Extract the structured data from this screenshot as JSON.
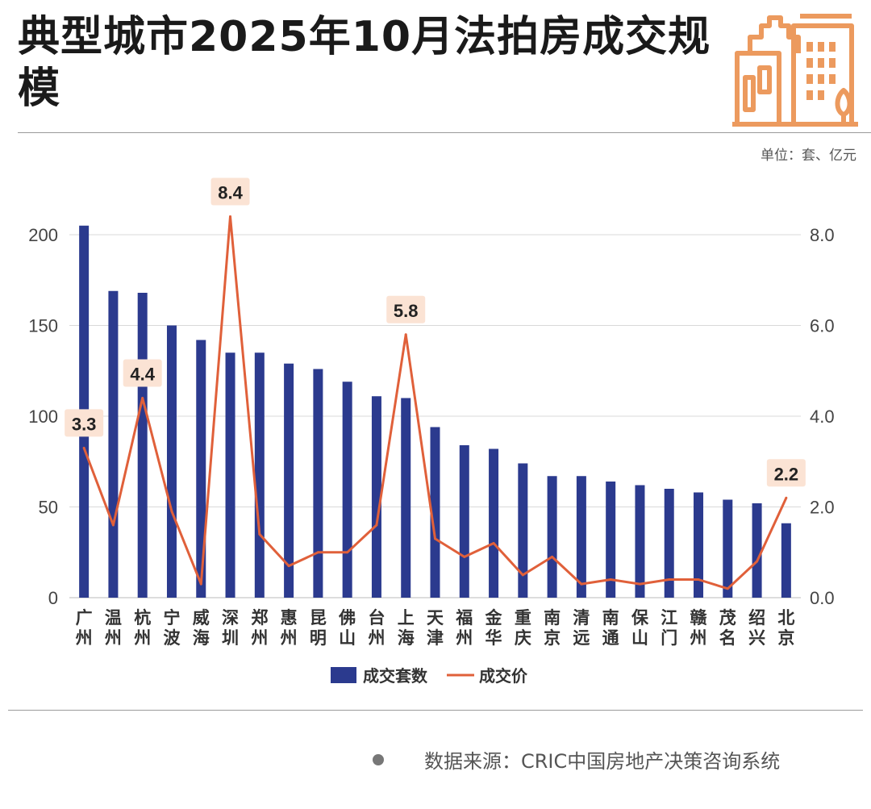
{
  "header": {
    "title": "典型城市2025年10月法拍房成交规模",
    "unit": "单位：套、亿元"
  },
  "footer": {
    "source": "数据来源：CRIC中国房地产决策咨询系统"
  },
  "colors": {
    "bar": "#2b3a8e",
    "line": "#e0603a",
    "label_bg": "#fbe3d4",
    "logo": "#ec9a5e"
  },
  "chart_data": {
    "type": "bar",
    "title": "典型城市2025年10月法拍房成交规模",
    "categories": [
      "广州",
      "温州",
      "杭州",
      "宁波",
      "威海",
      "深圳",
      "郑州",
      "惠州",
      "昆明",
      "佛山",
      "台州",
      "上海",
      "天津",
      "福州",
      "金华",
      "重庆",
      "南京",
      "清远",
      "南通",
      "保山",
      "江门",
      "赣州",
      "茂名",
      "绍兴",
      "北京"
    ],
    "category_labels": [
      [
        "广",
        "州"
      ],
      [
        "温",
        "州"
      ],
      [
        "杭",
        "州"
      ],
      [
        "宁",
        "波"
      ],
      [
        "威",
        "海"
      ],
      [
        "深",
        "圳"
      ],
      [
        "郑",
        "州"
      ],
      [
        "惠",
        "州"
      ],
      [
        "昆",
        "明"
      ],
      [
        "佛",
        "山"
      ],
      [
        "台",
        "州"
      ],
      [
        "上",
        "海"
      ],
      [
        "天",
        "津"
      ],
      [
        "福",
        "州"
      ],
      [
        "金",
        "华"
      ],
      [
        "重",
        "庆"
      ],
      [
        "南",
        "京"
      ],
      [
        "清",
        "远"
      ],
      [
        "南",
        "通"
      ],
      [
        "保",
        "山"
      ],
      [
        "江",
        "门"
      ],
      [
        "赣",
        "州"
      ],
      [
        "茂",
        "名"
      ],
      [
        "绍",
        "兴"
      ],
      [
        "北",
        "京"
      ]
    ],
    "series": [
      {
        "name": "成交套数",
        "type": "bar",
        "axis": "left",
        "values": [
          205,
          169,
          168,
          150,
          142,
          135,
          135,
          129,
          126,
          119,
          111,
          110,
          94,
          84,
          82,
          74,
          67,
          67,
          64,
          62,
          60,
          58,
          54,
          52,
          41
        ]
      },
      {
        "name": "成交价",
        "type": "line",
        "axis": "right",
        "values": [
          3.3,
          1.6,
          4.4,
          1.9,
          0.3,
          8.4,
          1.4,
          0.7,
          1.0,
          1.0,
          1.6,
          5.8,
          1.3,
          0.9,
          1.2,
          0.5,
          0.9,
          0.3,
          0.4,
          0.3,
          0.4,
          0.4,
          0.2,
          0.8,
          2.2
        ]
      }
    ],
    "annotations": [
      {
        "city": "广州",
        "text": "3.3"
      },
      {
        "city": "杭州",
        "text": "4.4"
      },
      {
        "city": "深圳",
        "text": "8.4"
      },
      {
        "city": "上海",
        "text": "5.8"
      },
      {
        "city": "北京",
        "text": "2.2"
      }
    ],
    "y_left": {
      "range": [
        0,
        200
      ],
      "ticks": [
        "0",
        "50",
        "100",
        "150",
        "200"
      ]
    },
    "y_right": {
      "range": [
        0,
        8
      ],
      "ticks": [
        "0.0",
        "2.0",
        "4.0",
        "6.0",
        "8.0"
      ]
    },
    "legend": [
      {
        "label": "成交套数",
        "kind": "bar"
      },
      {
        "label": "成交价",
        "kind": "line"
      }
    ],
    "grid": true
  }
}
